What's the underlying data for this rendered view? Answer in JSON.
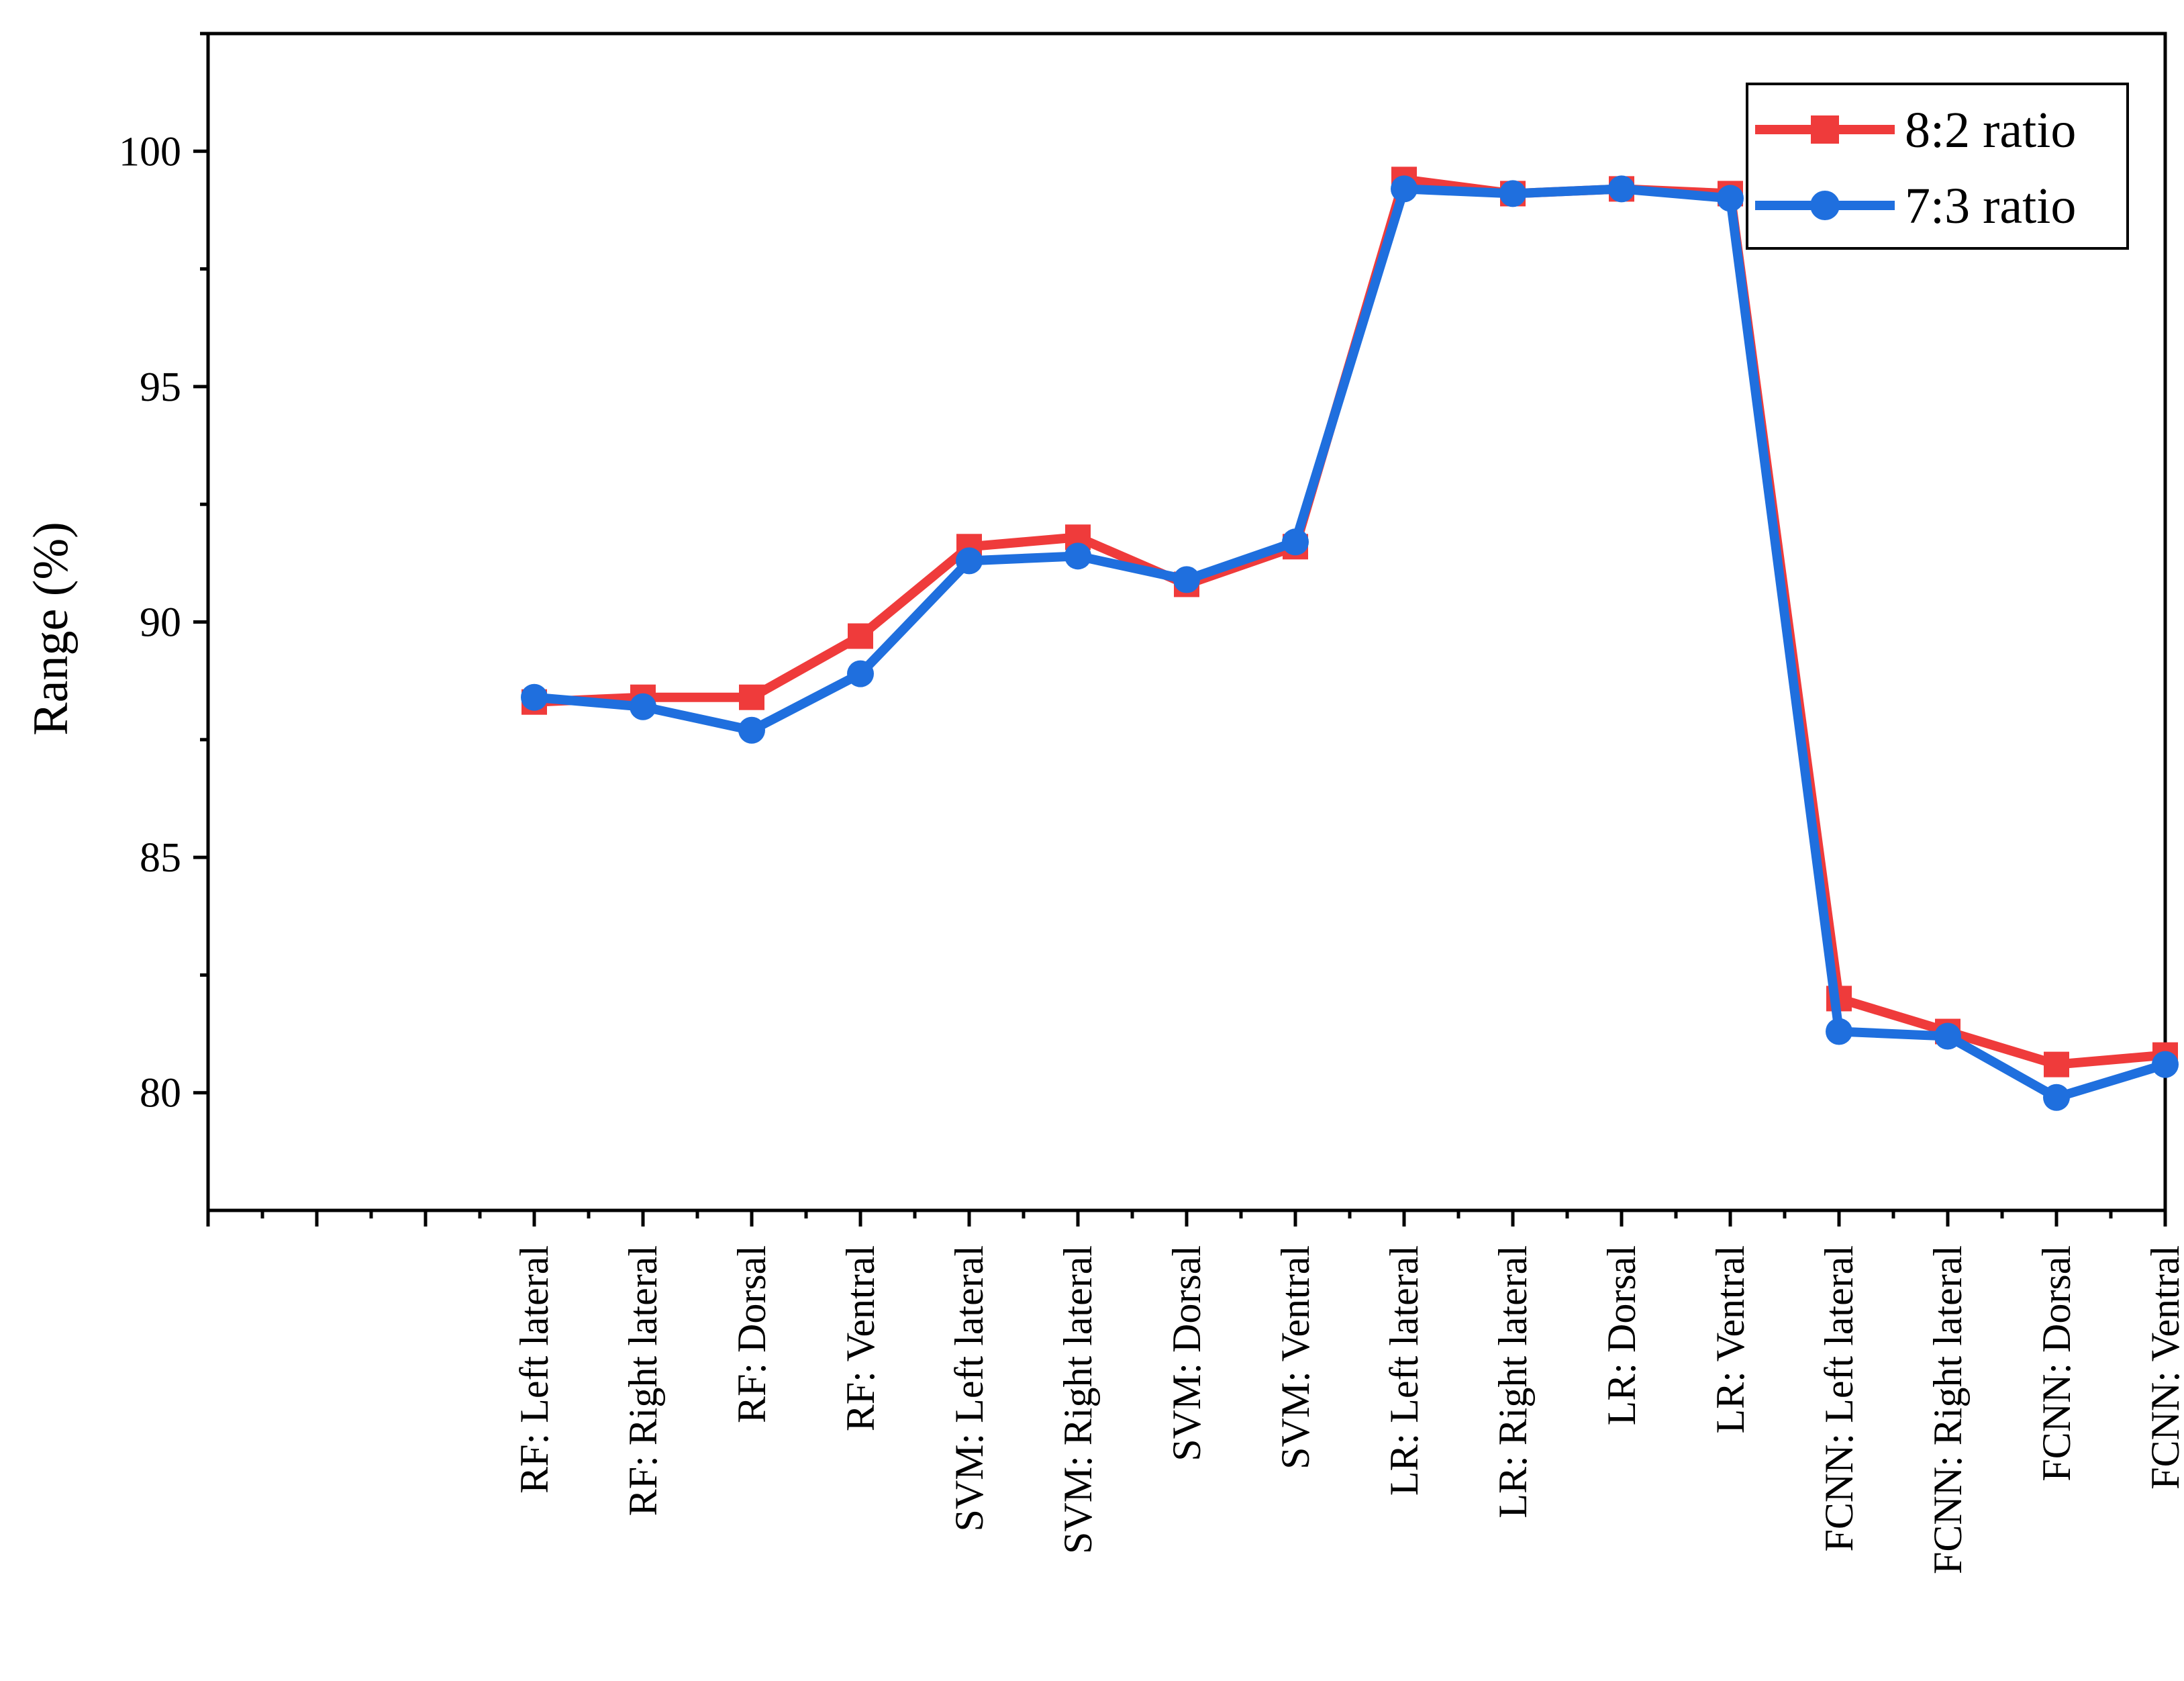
{
  "chart_data": {
    "type": "line",
    "title": "",
    "xlabel": "",
    "ylabel": "Range (%)",
    "ylim": [
      77.5,
      102.5
    ],
    "yticks": [
      80,
      85,
      90,
      95,
      100
    ],
    "grid": false,
    "legend_position": "top-right",
    "categories": [
      "RF: Left lateral",
      "RF: Right lateral",
      "RF: Dorsal",
      "RF: Ventral",
      "SVM: Left lateral",
      "SVM: Right lateral",
      "SVM: Dorsal",
      "SVM: Ventral",
      "LR: Left lateral",
      "LR: Right lateral",
      "LR: Dorsal",
      "LR: Ventral",
      "FCNN: Left lateral",
      "FCNN: Right lateral",
      "FCNN: Dorsal",
      "FCNN: Ventral"
    ],
    "series": [
      {
        "name": "8:2 ratio",
        "color": "#ef3b3b",
        "marker": "square",
        "values": [
          88.3,
          88.4,
          88.4,
          89.7,
          91.6,
          91.8,
          90.8,
          91.6,
          99.4,
          99.1,
          99.2,
          99.1,
          82.0,
          81.3,
          80.6,
          80.8
        ]
      },
      {
        "name": "7:3 ratio",
        "color": "#1f6fde",
        "marker": "circle",
        "values": [
          88.4,
          88.2,
          87.7,
          88.9,
          91.3,
          91.4,
          90.9,
          91.7,
          99.2,
          99.1,
          99.2,
          99.0,
          81.3,
          81.2,
          79.9,
          80.6
        ]
      }
    ]
  }
}
